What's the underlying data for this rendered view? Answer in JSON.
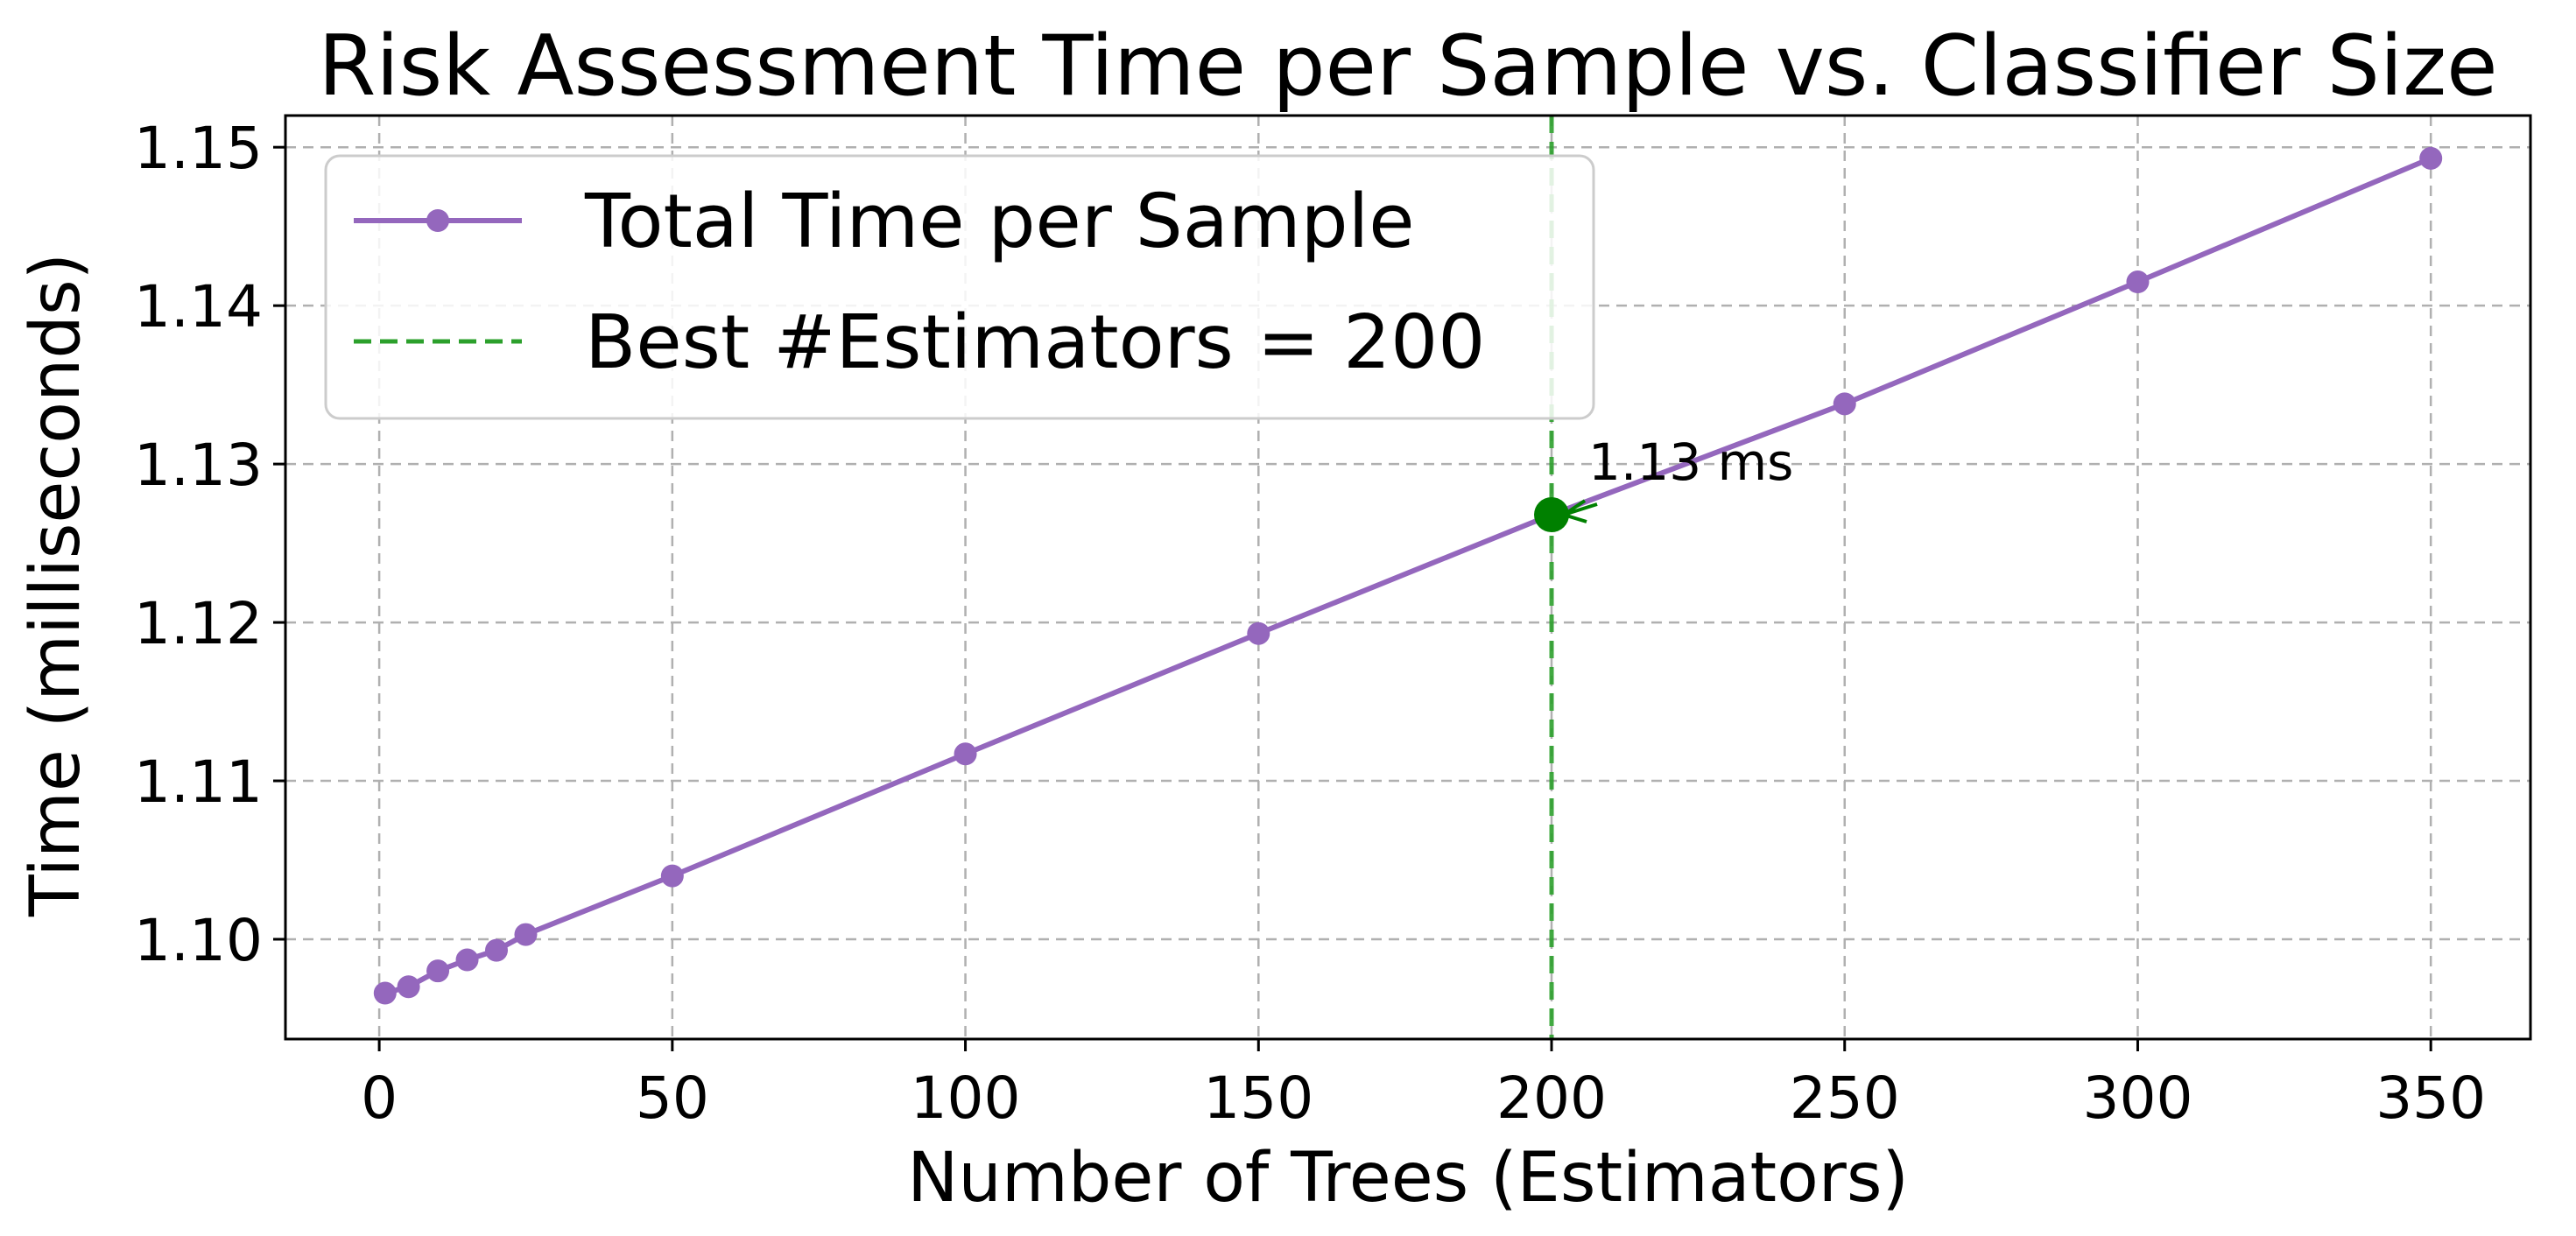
{
  "chart_data": {
    "type": "line",
    "title": "Risk Assessment Time per Sample vs. Classifier Size",
    "xlabel": "Number of Trees (Estimators)",
    "ylabel": "Time (milliseconds)",
    "xlim": [
      -16,
      367
    ],
    "ylim": [
      1.0937,
      1.152
    ],
    "xticks": [
      0,
      50,
      100,
      150,
      200,
      250,
      300,
      350
    ],
    "yticks": [
      1.1,
      1.11,
      1.12,
      1.13,
      1.14,
      1.15
    ],
    "xtick_labels": [
      "0",
      "50",
      "100",
      "150",
      "200",
      "250",
      "300",
      "350"
    ],
    "ytick_labels": [
      "1.10",
      "1.11",
      "1.12",
      "1.13",
      "1.14",
      "1.15"
    ],
    "grid": true,
    "legend_position": "top-left",
    "series": [
      {
        "name": "Total Time per Sample",
        "color": "#9467bd",
        "marker": "circle",
        "x": [
          1,
          5,
          10,
          15,
          20,
          25,
          50,
          100,
          150,
          200,
          250,
          300,
          350
        ],
        "y": [
          1.0966,
          1.097,
          1.098,
          1.0987,
          1.0993,
          1.1003,
          1.104,
          1.1117,
          1.1193,
          1.1268,
          1.1338,
          1.1415,
          1.1493
        ]
      }
    ],
    "reference_line": {
      "name": "Best #Estimators = 200",
      "orientation": "vertical",
      "x": 200,
      "color": "#2ca02c",
      "style": "dashed"
    },
    "highlight_point": {
      "x": 200,
      "y": 1.1268,
      "color": "#008000",
      "annotation": "1.13 ms"
    }
  }
}
